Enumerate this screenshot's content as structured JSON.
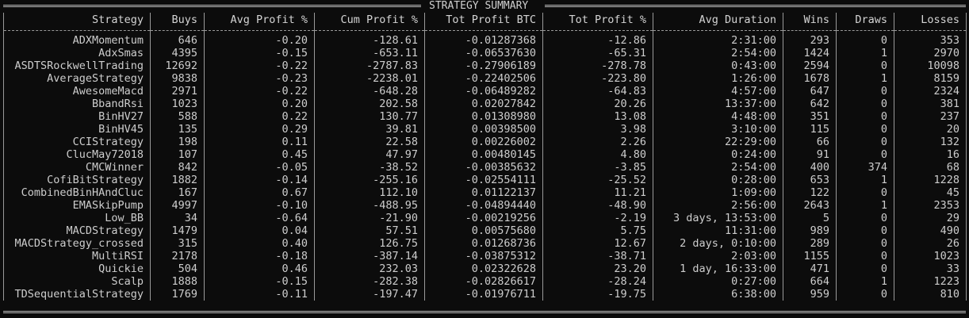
{
  "title": "STRATEGY SUMMARY",
  "columns": [
    "Strategy",
    "Buys",
    "Avg Profit %",
    "Cum Profit %",
    "Tot Profit BTC",
    "Tot Profit %",
    "Avg Duration",
    "Wins",
    "Draws",
    "Losses"
  ],
  "rows": [
    [
      "ADXMomentum",
      "646",
      "-0.20",
      "-128.61",
      "-0.01287368",
      "-12.86",
      "2:31:00",
      "293",
      "0",
      "353"
    ],
    [
      "AdxSmas",
      "4395",
      "-0.15",
      "-653.11",
      "-0.06537630",
      "-65.31",
      "2:54:00",
      "1424",
      "1",
      "2970"
    ],
    [
      "ASDTSRockwellTrading",
      "12692",
      "-0.22",
      "-2787.83",
      "-0.27906189",
      "-278.78",
      "0:43:00",
      "2594",
      "0",
      "10098"
    ],
    [
      "AverageStrategy",
      "9838",
      "-0.23",
      "-2238.01",
      "-0.22402506",
      "-223.80",
      "1:26:00",
      "1678",
      "1",
      "8159"
    ],
    [
      "AwesomeMacd",
      "2971",
      "-0.22",
      "-648.28",
      "-0.06489282",
      "-64.83",
      "4:57:00",
      "647",
      "0",
      "2324"
    ],
    [
      "BbandRsi",
      "1023",
      "0.20",
      "202.58",
      "0.02027842",
      "20.26",
      "13:37:00",
      "642",
      "0",
      "381"
    ],
    [
      "BinHV27",
      "588",
      "0.22",
      "130.77",
      "0.01308980",
      "13.08",
      "4:48:00",
      "351",
      "0",
      "237"
    ],
    [
      "BinHV45",
      "135",
      "0.29",
      "39.81",
      "0.00398500",
      "3.98",
      "3:10:00",
      "115",
      "0",
      "20"
    ],
    [
      "CCIStrategy",
      "198",
      "0.11",
      "22.58",
      "0.00226002",
      "2.26",
      "22:29:00",
      "66",
      "0",
      "132"
    ],
    [
      "ClucMay72018",
      "107",
      "0.45",
      "47.97",
      "0.00480145",
      "4.80",
      "0:24:00",
      "91",
      "0",
      "16"
    ],
    [
      "CMCWinner",
      "842",
      "-0.05",
      "-38.52",
      "-0.00385632",
      "-3.85",
      "2:54:00",
      "400",
      "374",
      "68"
    ],
    [
      "CofiBitStrategy",
      "1882",
      "-0.14",
      "-255.16",
      "-0.02554111",
      "-25.52",
      "0:28:00",
      "653",
      "1",
      "1228"
    ],
    [
      "CombinedBinHAndCluc",
      "167",
      "0.67",
      "112.10",
      "0.01122137",
      "11.21",
      "1:09:00",
      "122",
      "0",
      "45"
    ],
    [
      "EMASkipPump",
      "4997",
      "-0.10",
      "-488.95",
      "-0.04894440",
      "-48.90",
      "2:56:00",
      "2643",
      "1",
      "2353"
    ],
    [
      "Low_BB",
      "34",
      "-0.64",
      "-21.90",
      "-0.00219256",
      "-2.19",
      "3 days, 13:53:00",
      "5",
      "0",
      "29"
    ],
    [
      "MACDStrategy",
      "1479",
      "0.04",
      "57.51",
      "0.00575680",
      "5.75",
      "11:31:00",
      "989",
      "0",
      "490"
    ],
    [
      "MACDStrategy_crossed",
      "315",
      "0.40",
      "126.75",
      "0.01268736",
      "12.67",
      "2 days, 0:10:00",
      "289",
      "0",
      "26"
    ],
    [
      "MultiRSI",
      "2178",
      "-0.18",
      "-387.14",
      "-0.03875312",
      "-38.71",
      "2:03:00",
      "1155",
      "0",
      "1023"
    ],
    [
      "Quickie",
      "504",
      "0.46",
      "232.03",
      "0.02322628",
      "23.20",
      "1 day, 16:33:00",
      "471",
      "0",
      "33"
    ],
    [
      "Scalp",
      "1888",
      "-0.15",
      "-282.38",
      "-0.02826617",
      "-28.24",
      "0:27:00",
      "664",
      "1",
      "1223"
    ],
    [
      "TDSequentialStrategy",
      "1769",
      "-0.11",
      "-197.47",
      "-0.01976711",
      "-19.75",
      "6:38:00",
      "959",
      "0",
      "810"
    ]
  ]
}
